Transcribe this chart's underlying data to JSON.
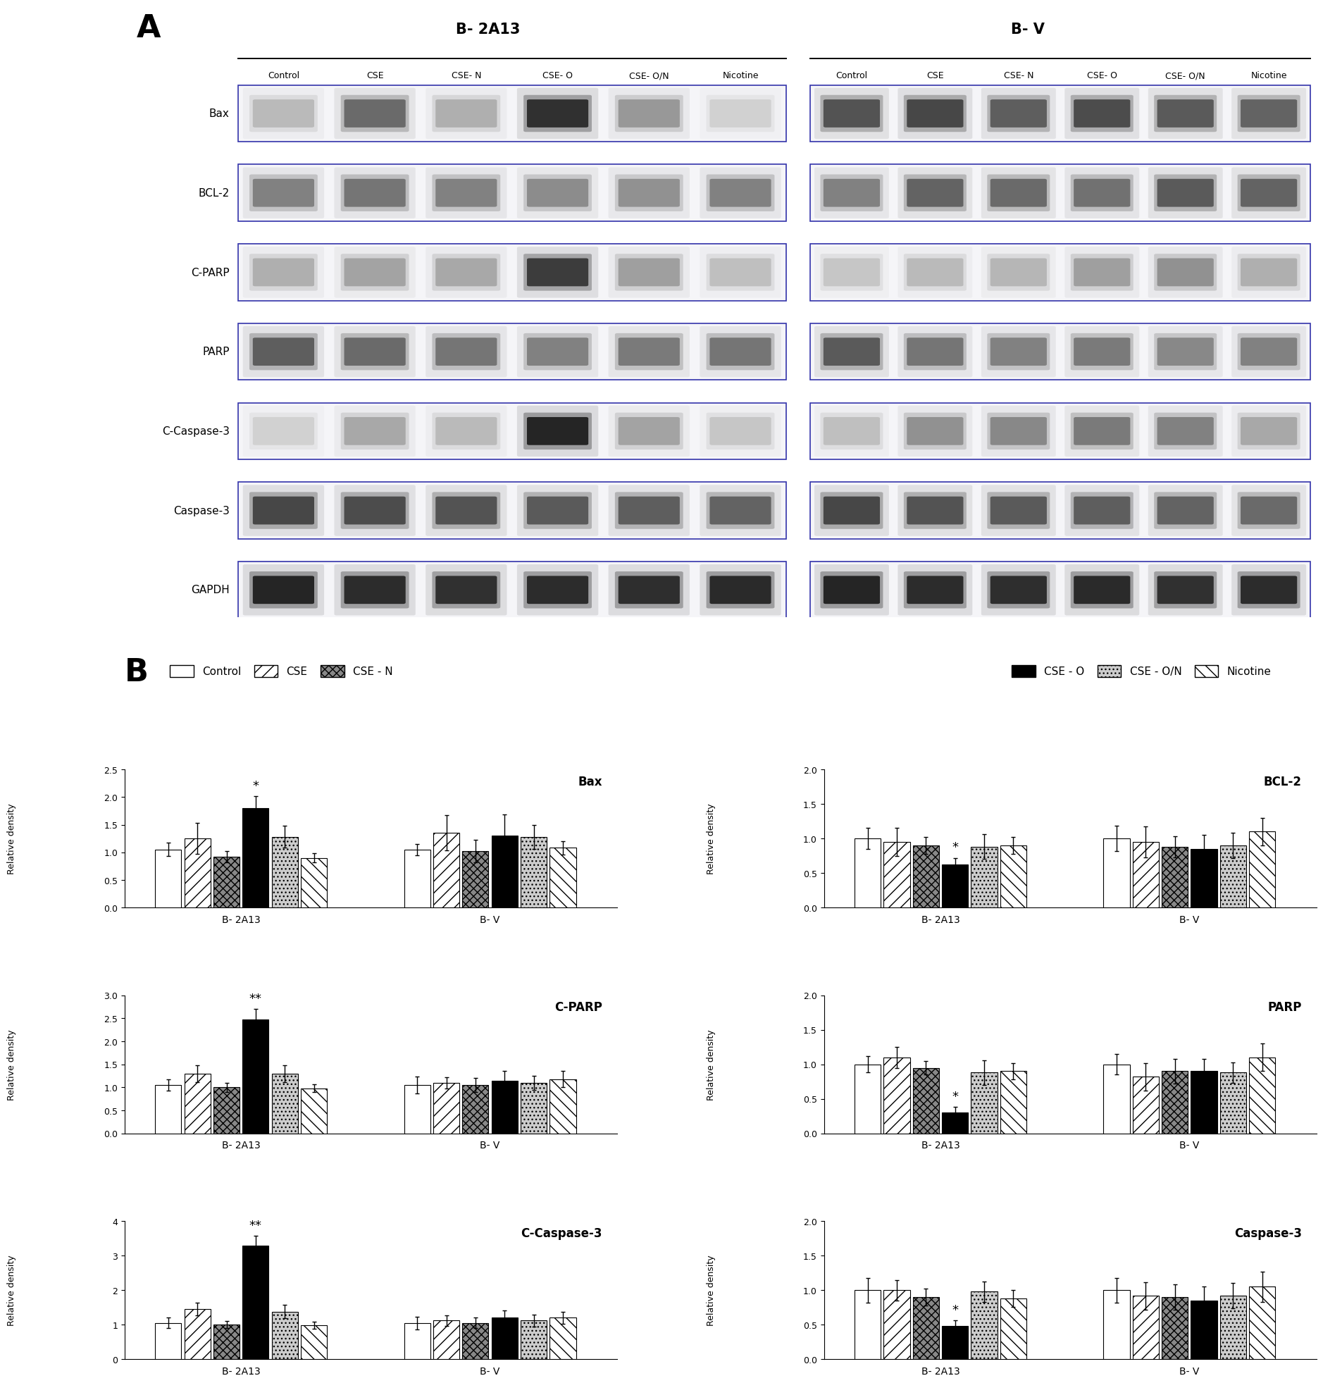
{
  "panel_A": {
    "left_title": "B- 2A13",
    "right_title": "B- V",
    "col_labels": [
      "Control",
      "CSE",
      "CSE- N",
      "CSE- O",
      "CSE- O/N",
      "Nicotine"
    ],
    "row_labels": [
      "Bax",
      "BCL-2",
      "C-PARP",
      "PARP",
      "C-Caspase-3",
      "Caspase-3",
      "GAPDH"
    ]
  },
  "panel_B": {
    "charts": [
      {
        "title": "Bax",
        "ylabel": "Relative density",
        "ylim": [
          0,
          2.5
        ],
        "yticks": [
          0.0,
          0.5,
          1.0,
          1.5,
          2.0,
          2.5
        ],
        "groups": [
          "B- 2A13",
          "B- V"
        ],
        "bars": [
          [
            1.05,
            1.25,
            0.92,
            1.8,
            1.28,
            0.9
          ],
          [
            1.05,
            1.35,
            1.02,
            1.3,
            1.28,
            1.08
          ]
        ],
        "errors": [
          [
            0.12,
            0.28,
            0.1,
            0.22,
            0.2,
            0.08
          ],
          [
            0.1,
            0.32,
            0.2,
            0.38,
            0.22,
            0.12
          ]
        ],
        "star": {
          "group": 0,
          "bar": 3,
          "label": "*"
        }
      },
      {
        "title": "BCL-2",
        "ylabel": "Relative density",
        "ylim": [
          0,
          2.0
        ],
        "yticks": [
          0.0,
          0.5,
          1.0,
          1.5,
          2.0
        ],
        "groups": [
          "B- 2A13",
          "B- V"
        ],
        "bars": [
          [
            1.0,
            0.95,
            0.9,
            0.62,
            0.88,
            0.9
          ],
          [
            1.0,
            0.95,
            0.88,
            0.85,
            0.9,
            1.1
          ]
        ],
        "errors": [
          [
            0.15,
            0.2,
            0.12,
            0.1,
            0.18,
            0.12
          ],
          [
            0.18,
            0.22,
            0.15,
            0.2,
            0.18,
            0.2
          ]
        ],
        "star": {
          "group": 0,
          "bar": 3,
          "label": "*"
        }
      },
      {
        "title": "C-PARP",
        "ylabel": "Relative density",
        "ylim": [
          0,
          3.0
        ],
        "yticks": [
          0.0,
          0.5,
          1.0,
          1.5,
          2.0,
          2.5,
          3.0
        ],
        "groups": [
          "B- 2A13",
          "B- V"
        ],
        "bars": [
          [
            1.05,
            1.3,
            1.0,
            2.48,
            1.3,
            0.98
          ],
          [
            1.05,
            1.1,
            1.05,
            1.15,
            1.1,
            1.18
          ]
        ],
        "errors": [
          [
            0.12,
            0.18,
            0.1,
            0.22,
            0.18,
            0.08
          ],
          [
            0.18,
            0.12,
            0.15,
            0.2,
            0.15,
            0.18
          ]
        ],
        "star": {
          "group": 0,
          "bar": 3,
          "label": "**"
        }
      },
      {
        "title": "PARP",
        "ylabel": "Relative density",
        "ylim": [
          0,
          2.0
        ],
        "yticks": [
          0.0,
          0.5,
          1.0,
          1.5,
          2.0
        ],
        "groups": [
          "B- 2A13",
          "B- V"
        ],
        "bars": [
          [
            1.0,
            1.1,
            0.95,
            0.3,
            0.88,
            0.9
          ],
          [
            1.0,
            0.82,
            0.9,
            0.9,
            0.88,
            1.1
          ]
        ],
        "errors": [
          [
            0.12,
            0.15,
            0.1,
            0.08,
            0.18,
            0.12
          ],
          [
            0.15,
            0.2,
            0.18,
            0.18,
            0.15,
            0.2
          ]
        ],
        "star": {
          "group": 0,
          "bar": 3,
          "label": "*"
        }
      },
      {
        "title": "C-Caspase-3",
        "ylabel": "Relative density",
        "ylim": [
          0,
          4.0
        ],
        "yticks": [
          0.0,
          1.0,
          2.0,
          3.0,
          4.0
        ],
        "groups": [
          "B- 2A13",
          "B- V"
        ],
        "bars": [
          [
            1.05,
            1.45,
            1.0,
            3.3,
            1.38,
            0.98
          ],
          [
            1.05,
            1.12,
            1.05,
            1.2,
            1.12,
            1.2
          ]
        ],
        "errors": [
          [
            0.15,
            0.18,
            0.1,
            0.28,
            0.2,
            0.1
          ],
          [
            0.18,
            0.15,
            0.15,
            0.22,
            0.18,
            0.18
          ]
        ],
        "star": {
          "group": 0,
          "bar": 3,
          "label": "**"
        }
      },
      {
        "title": "Caspase-3",
        "ylabel": "Relative density",
        "ylim": [
          0,
          2.0
        ],
        "yticks": [
          0.0,
          0.5,
          1.0,
          1.5,
          2.0
        ],
        "groups": [
          "B- 2A13",
          "B- V"
        ],
        "bars": [
          [
            1.0,
            1.0,
            0.9,
            0.48,
            0.98,
            0.88
          ],
          [
            1.0,
            0.92,
            0.9,
            0.85,
            0.92,
            1.05
          ]
        ],
        "errors": [
          [
            0.18,
            0.15,
            0.12,
            0.08,
            0.15,
            0.12
          ],
          [
            0.18,
            0.2,
            0.18,
            0.2,
            0.18,
            0.22
          ]
        ],
        "star": {
          "group": 0,
          "bar": 3,
          "label": "*"
        }
      }
    ]
  },
  "blot_data_2A13": [
    [
      0.3,
      0.65,
      0.35,
      0.9,
      0.45,
      0.2
    ],
    [
      0.55,
      0.6,
      0.55,
      0.5,
      0.48,
      0.55
    ],
    [
      0.35,
      0.4,
      0.38,
      0.85,
      0.42,
      0.28
    ],
    [
      0.7,
      0.65,
      0.6,
      0.55,
      0.58,
      0.6
    ],
    [
      0.2,
      0.38,
      0.3,
      0.95,
      0.4,
      0.25
    ],
    [
      0.8,
      0.78,
      0.75,
      0.72,
      0.7,
      0.68
    ],
    [
      0.95,
      0.92,
      0.9,
      0.92,
      0.91,
      0.93
    ]
  ],
  "blot_data_BV": [
    [
      0.75,
      0.8,
      0.7,
      0.78,
      0.72,
      0.68
    ],
    [
      0.55,
      0.68,
      0.65,
      0.62,
      0.72,
      0.68
    ],
    [
      0.25,
      0.3,
      0.32,
      0.42,
      0.48,
      0.35
    ],
    [
      0.72,
      0.6,
      0.55,
      0.58,
      0.52,
      0.55
    ],
    [
      0.28,
      0.48,
      0.52,
      0.58,
      0.55,
      0.38
    ],
    [
      0.8,
      0.75,
      0.72,
      0.7,
      0.68,
      0.65
    ],
    [
      0.95,
      0.92,
      0.91,
      0.93,
      0.9,
      0.92
    ]
  ],
  "bar_patterns": [
    "",
    "//",
    "xxx",
    "",
    "...",
    "\\\\"
  ],
  "bar_facecolors": [
    "white",
    "white",
    "#888888",
    "black",
    "#cccccc",
    "white"
  ],
  "bar_edgecolors": [
    "black",
    "black",
    "black",
    "black",
    "black",
    "black"
  ],
  "legend_left": [
    "Control",
    "CSE",
    "CSE - N"
  ],
  "legend_right": [
    "CSE - O",
    "CSE - O/N",
    "Nicotine"
  ],
  "blot_box_color": "#3333aa",
  "blot_bg_color": "#f5f5f8"
}
